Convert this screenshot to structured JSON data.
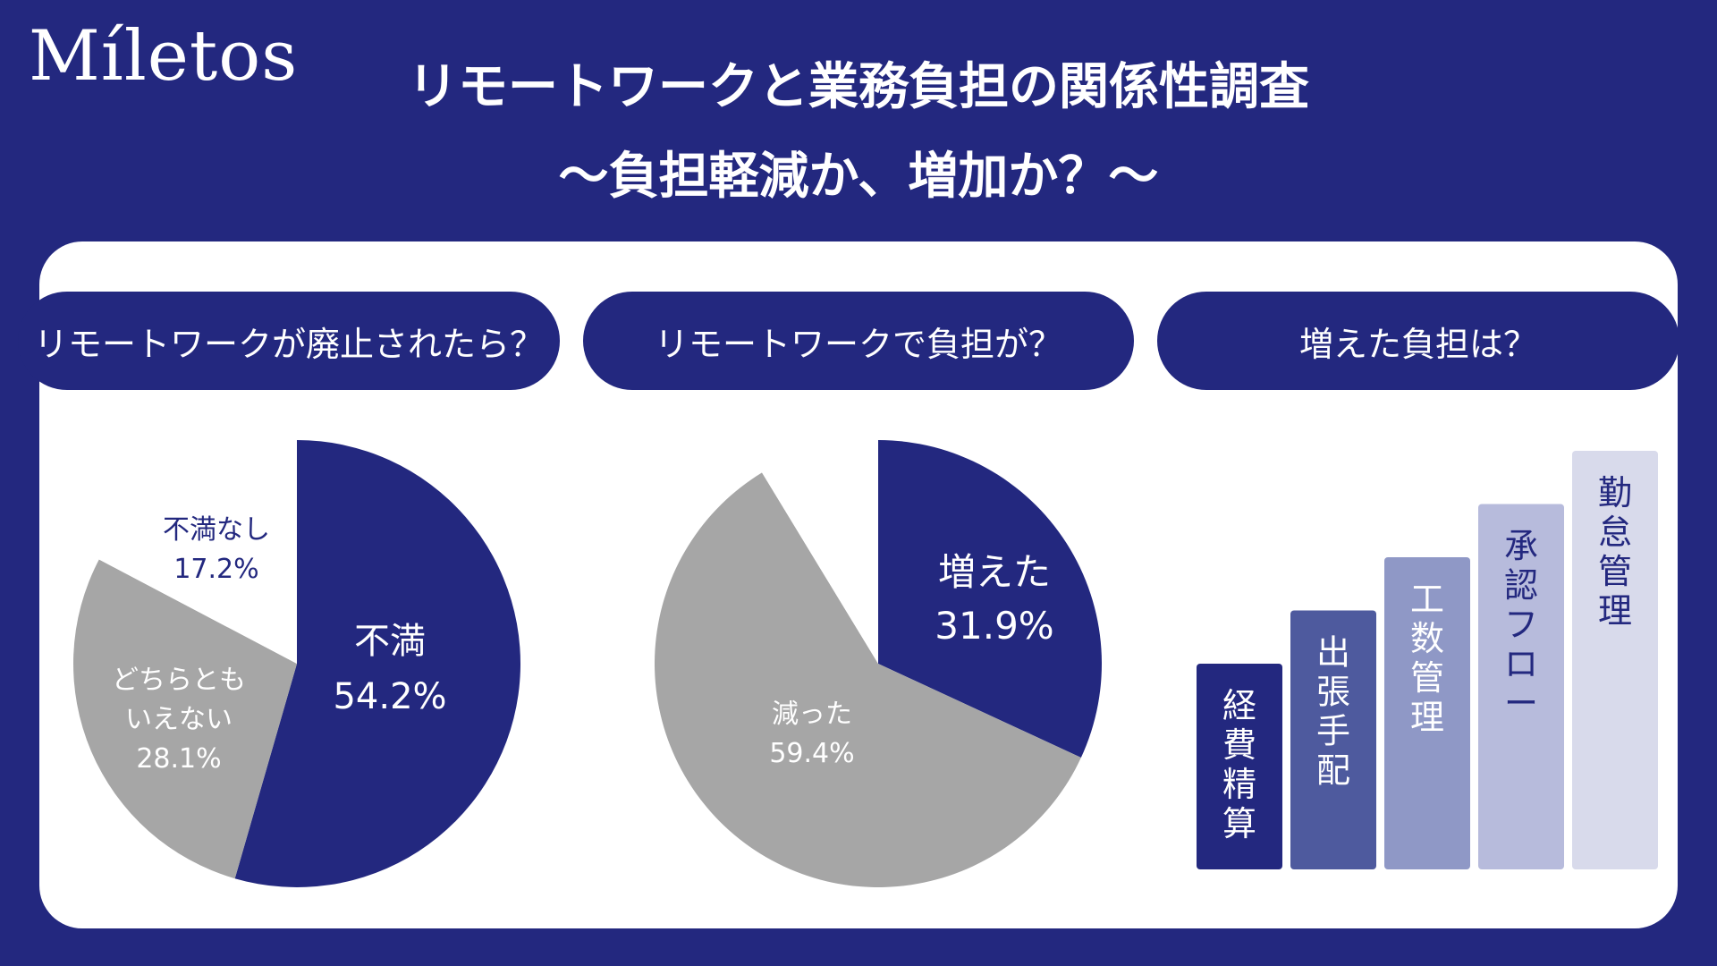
{
  "logo": "Míletos",
  "title": "リモートワークと業務負担の関係性調査",
  "subtitle": "～負担軽減か、増加か？～",
  "colors": {
    "navy": "#23287f",
    "gray": "#a6a6a6"
  },
  "chart_data": [
    {
      "type": "pie",
      "title": "リモートワークが廃止されたら？",
      "slices": [
        {
          "label": "不満",
          "value": 54.2,
          "display": "54.2%",
          "color": "#23287f"
        },
        {
          "label": "どちらとも\nいえない",
          "value": 28.1,
          "display": "28.1%",
          "color": "#a6a6a6"
        },
        {
          "label": "不満なし",
          "value": 17.2,
          "display": "17.2%",
          "color": "#ffffff"
        }
      ]
    },
    {
      "type": "pie",
      "title": "リモートワークで負担が？",
      "slices": [
        {
          "label": "増えた",
          "value": 31.9,
          "display": "31.9%",
          "color": "#23287f"
        },
        {
          "label": "減った",
          "value": 59.4,
          "display": "59.4%",
          "color": "#a6a6a6"
        },
        {
          "label": "",
          "value": 8.7,
          "display": "",
          "color": "#ffffff"
        }
      ]
    },
    {
      "type": "bar",
      "title": "増えた負担は？",
      "categories": [
        "経費精算",
        "出張手配",
        "工数管理",
        "承認フロー",
        "勤怠管理"
      ],
      "values": [
        1,
        2,
        3,
        4,
        5
      ],
      "colors": [
        "#23287f",
        "#4e5a9e",
        "#8f98c6",
        "#b7bbdc",
        "#d8daeb"
      ],
      "text_colors": [
        "#ffffff",
        "#ffffff",
        "#ffffff",
        "#23287f",
        "#23287f"
      ]
    }
  ]
}
